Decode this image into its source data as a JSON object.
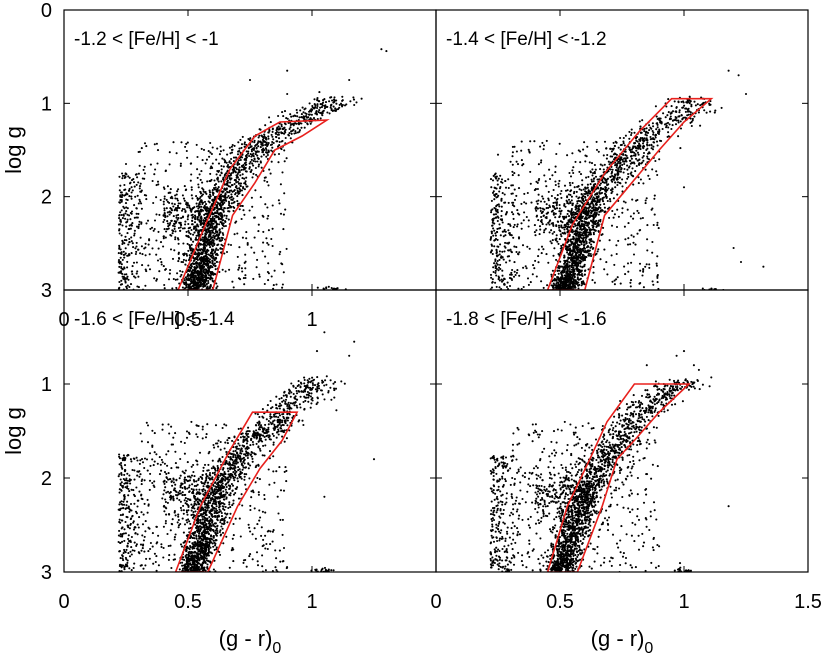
{
  "chart_data": [
    {
      "type": "scatter",
      "panel": "top-left",
      "label": "-1.2 < [Fe/H] < -1",
      "xlim": [
        0,
        1.5
      ],
      "ylim": [
        3,
        0
      ],
      "xticks": [
        "0",
        "0.5",
        "1"
      ],
      "yticks": [
        "0",
        "1",
        "2",
        "3"
      ],
      "xlabel": "",
      "ylabel": "log g",
      "ridge": [
        [
          0.53,
          3.0
        ],
        [
          0.6,
          2.2
        ],
        [
          0.7,
          1.7
        ],
        [
          0.82,
          1.35
        ],
        [
          0.97,
          1.15
        ],
        [
          1.08,
          1.0
        ]
      ],
      "outliers": [
        [
          1.28,
          0.42
        ],
        [
          1.3,
          0.44
        ],
        [
          0.75,
          0.75
        ],
        [
          0.9,
          0.9
        ],
        [
          1.15,
          0.75
        ],
        [
          1.2,
          0.95
        ],
        [
          0.25,
          1.65
        ],
        [
          0.9,
          0.65
        ],
        [
          1.03,
          0.88
        ]
      ],
      "polygon": [
        [
          0.46,
          3.0
        ],
        [
          0.57,
          2.3
        ],
        [
          0.67,
          1.7
        ],
        [
          0.77,
          1.35
        ],
        [
          0.87,
          1.2
        ],
        [
          1.06,
          1.18
        ],
        [
          0.96,
          1.35
        ],
        [
          0.85,
          1.5
        ],
        [
          0.77,
          1.85
        ],
        [
          0.68,
          2.2
        ],
        [
          0.6,
          3.0
        ]
      ]
    },
    {
      "type": "scatter",
      "panel": "top-right",
      "label": "-1.4 < [Fe/H] < -1.2",
      "xlim": [
        0,
        1.5
      ],
      "ylim": [
        3,
        0
      ],
      "xticks": [],
      "yticks": [],
      "xlabel": "",
      "ylabel": "",
      "ridge": [
        [
          0.52,
          3.0
        ],
        [
          0.6,
          2.2
        ],
        [
          0.72,
          1.7
        ],
        [
          0.85,
          1.35
        ],
        [
          1.0,
          1.1
        ],
        [
          1.12,
          0.85
        ]
      ],
      "outliers": [
        [
          1.18,
          0.65
        ],
        [
          1.22,
          0.7
        ],
        [
          0.55,
          0.3
        ],
        [
          1.25,
          0.9
        ],
        [
          1.2,
          2.55
        ],
        [
          1.23,
          2.7
        ],
        [
          1.32,
          2.75
        ],
        [
          0.9,
          1.6
        ],
        [
          1.0,
          1.9
        ],
        [
          0.25,
          1.55
        ]
      ],
      "polygon": [
        [
          0.45,
          3.0
        ],
        [
          0.55,
          2.3
        ],
        [
          0.68,
          1.75
        ],
        [
          0.82,
          1.3
        ],
        [
          0.95,
          0.95
        ],
        [
          1.11,
          0.95
        ],
        [
          1.0,
          1.2
        ],
        [
          0.9,
          1.5
        ],
        [
          0.79,
          1.85
        ],
        [
          0.68,
          2.2
        ],
        [
          0.6,
          3.0
        ]
      ]
    },
    {
      "type": "scatter",
      "panel": "bottom-left",
      "label": "-1.6 < [Fe/H] < -1.4",
      "xlim": [
        0,
        1.5
      ],
      "ylim": [
        3,
        0
      ],
      "xticks": [
        "0",
        "0.5",
        "1"
      ],
      "yticks": [
        "",
        "1",
        "2",
        "3"
      ],
      "xlabel": "(g - r)0",
      "ylabel": "log g",
      "ridge": [
        [
          0.52,
          3.0
        ],
        [
          0.6,
          2.2
        ],
        [
          0.72,
          1.7
        ],
        [
          0.85,
          1.4
        ],
        [
          0.97,
          1.1
        ],
        [
          1.05,
          0.9
        ]
      ],
      "outliers": [
        [
          1.17,
          0.55
        ],
        [
          1.05,
          0.45
        ],
        [
          1.02,
          0.65
        ],
        [
          1.15,
          0.7
        ],
        [
          1.25,
          1.8
        ],
        [
          0.93,
          1.15
        ],
        [
          1.05,
          2.2
        ]
      ],
      "polygon": [
        [
          0.45,
          3.0
        ],
        [
          0.55,
          2.3
        ],
        [
          0.67,
          1.7
        ],
        [
          0.76,
          1.3
        ],
        [
          0.94,
          1.3
        ],
        [
          0.88,
          1.6
        ],
        [
          0.79,
          1.9
        ],
        [
          0.7,
          2.3
        ],
        [
          0.58,
          3.0
        ]
      ]
    },
    {
      "type": "scatter",
      "panel": "bottom-right",
      "label": "-1.8 < [Fe/H] < -1.6",
      "xlim": [
        0,
        1.5
      ],
      "ylim": [
        3,
        0
      ],
      "xticks": [
        "0",
        "0.5",
        "1",
        "1.5"
      ],
      "yticks": [],
      "xlabel": "(g - r)0",
      "ylabel": "",
      "ridge": [
        [
          0.5,
          3.0
        ],
        [
          0.58,
          2.3
        ],
        [
          0.68,
          1.8
        ],
        [
          0.8,
          1.4
        ],
        [
          0.9,
          1.15
        ],
        [
          1.0,
          0.95
        ]
      ],
      "outliers": [
        [
          0.97,
          0.7
        ],
        [
          1.0,
          0.65
        ],
        [
          1.06,
          0.85
        ],
        [
          1.04,
          0.8
        ],
        [
          1.18,
          2.3
        ],
        [
          0.85,
          0.8
        ]
      ],
      "polygon": [
        [
          0.45,
          3.0
        ],
        [
          0.53,
          2.3
        ],
        [
          0.62,
          1.8
        ],
        [
          0.69,
          1.4
        ],
        [
          0.8,
          1.0
        ],
        [
          1.02,
          1.0
        ],
        [
          0.9,
          1.3
        ],
        [
          0.8,
          1.6
        ],
        [
          0.73,
          1.8
        ],
        [
          0.67,
          2.3
        ],
        [
          0.57,
          3.0
        ]
      ]
    }
  ],
  "colors": {
    "points": "#000000",
    "polygon": "#e8211d",
    "axes": "#000000"
  },
  "figure": {
    "subscript": "0",
    "xlabel_base": "(g - r)"
  }
}
